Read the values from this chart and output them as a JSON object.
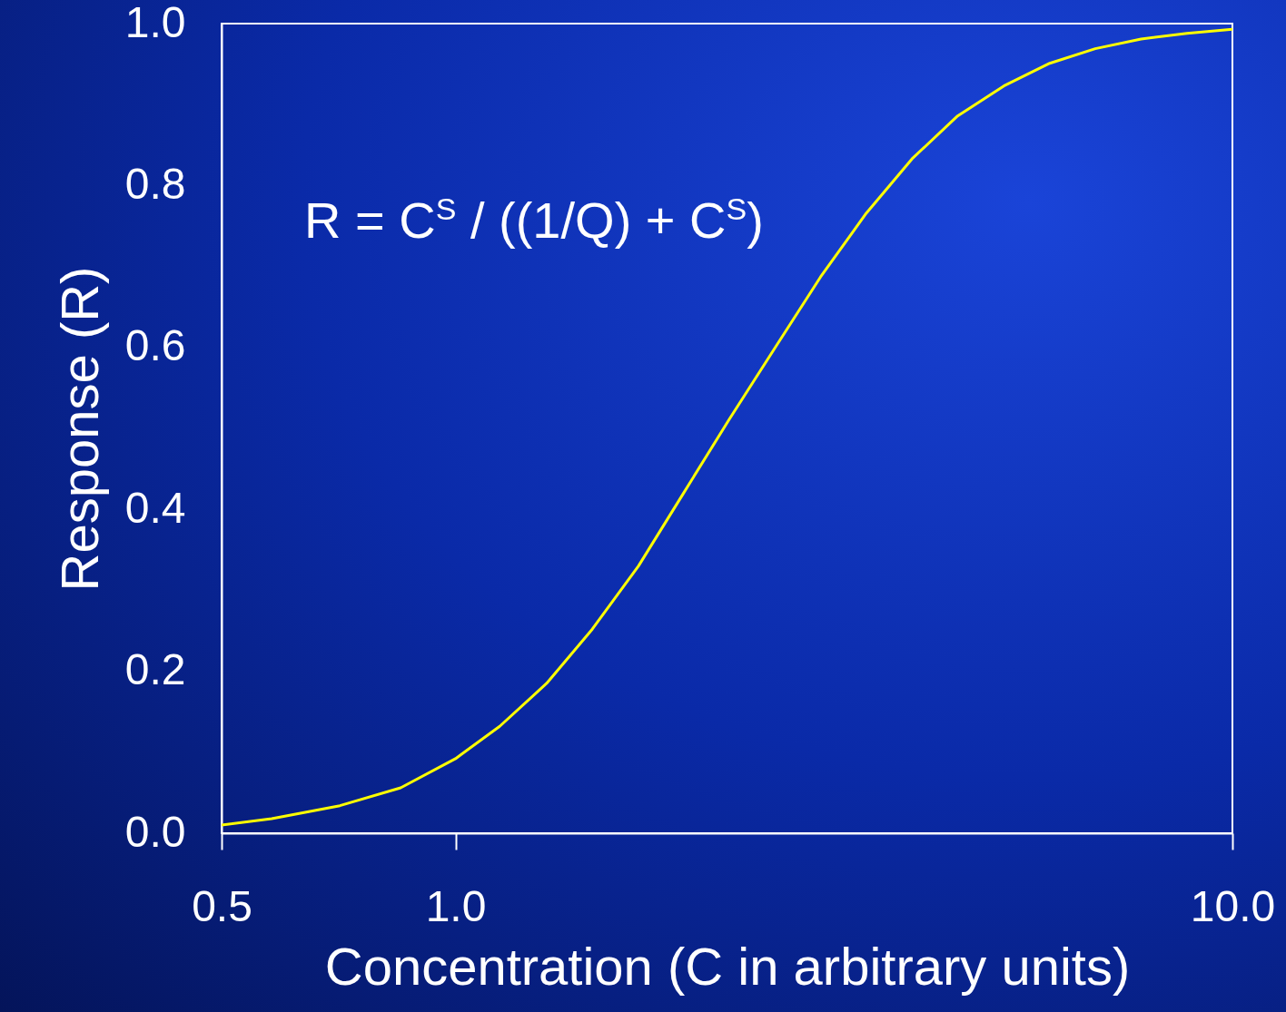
{
  "chart_data": {
    "type": "line",
    "xlabel": "Concentration (C in arbitrary units)",
    "ylabel": "Response (R)",
    "annotations": [
      "R = C$^{S}$ / ((1/Q) + C$^{S}$)"
    ],
    "log": "x",
    "grid": false,
    "marker": "none",
    "line_style": "solid",
    "xlim": [
      0.5,
      10
    ],
    "ylim": [
      0,
      1
    ],
    "xticks": [
      {
        "value": 0.5,
        "label": "0.5"
      },
      {
        "value": 1,
        "label": "1.0"
      },
      {
        "value": 10,
        "label": "10.0"
      }
    ],
    "yticks": [
      {
        "value": 0,
        "label": "0.0"
      },
      0.2,
      0.4,
      0.6,
      0.8,
      {
        "value": 1,
        "label": "1.0"
      }
    ],
    "series": [
      {
        "color": "#ffff00",
        "x": [
          0.5,
          0.58,
          0.71,
          0.85,
          1.0,
          1.14,
          1.31,
          1.5,
          1.72,
          1.96,
          2.25,
          2.58,
          2.95,
          3.38,
          3.87,
          4.43,
          5.08,
          5.82,
          6.66,
          7.63,
          8.74,
          10
        ],
        "values": [
          0.01,
          0.018,
          0.034,
          0.056,
          0.092,
          0.132,
          0.185,
          0.252,
          0.33,
          0.418,
          0.511,
          0.6,
          0.687,
          0.766,
          0.833,
          0.886,
          0.923,
          0.951,
          0.969,
          0.981,
          0.988,
          0.993
        ]
      }
    ]
  }
}
